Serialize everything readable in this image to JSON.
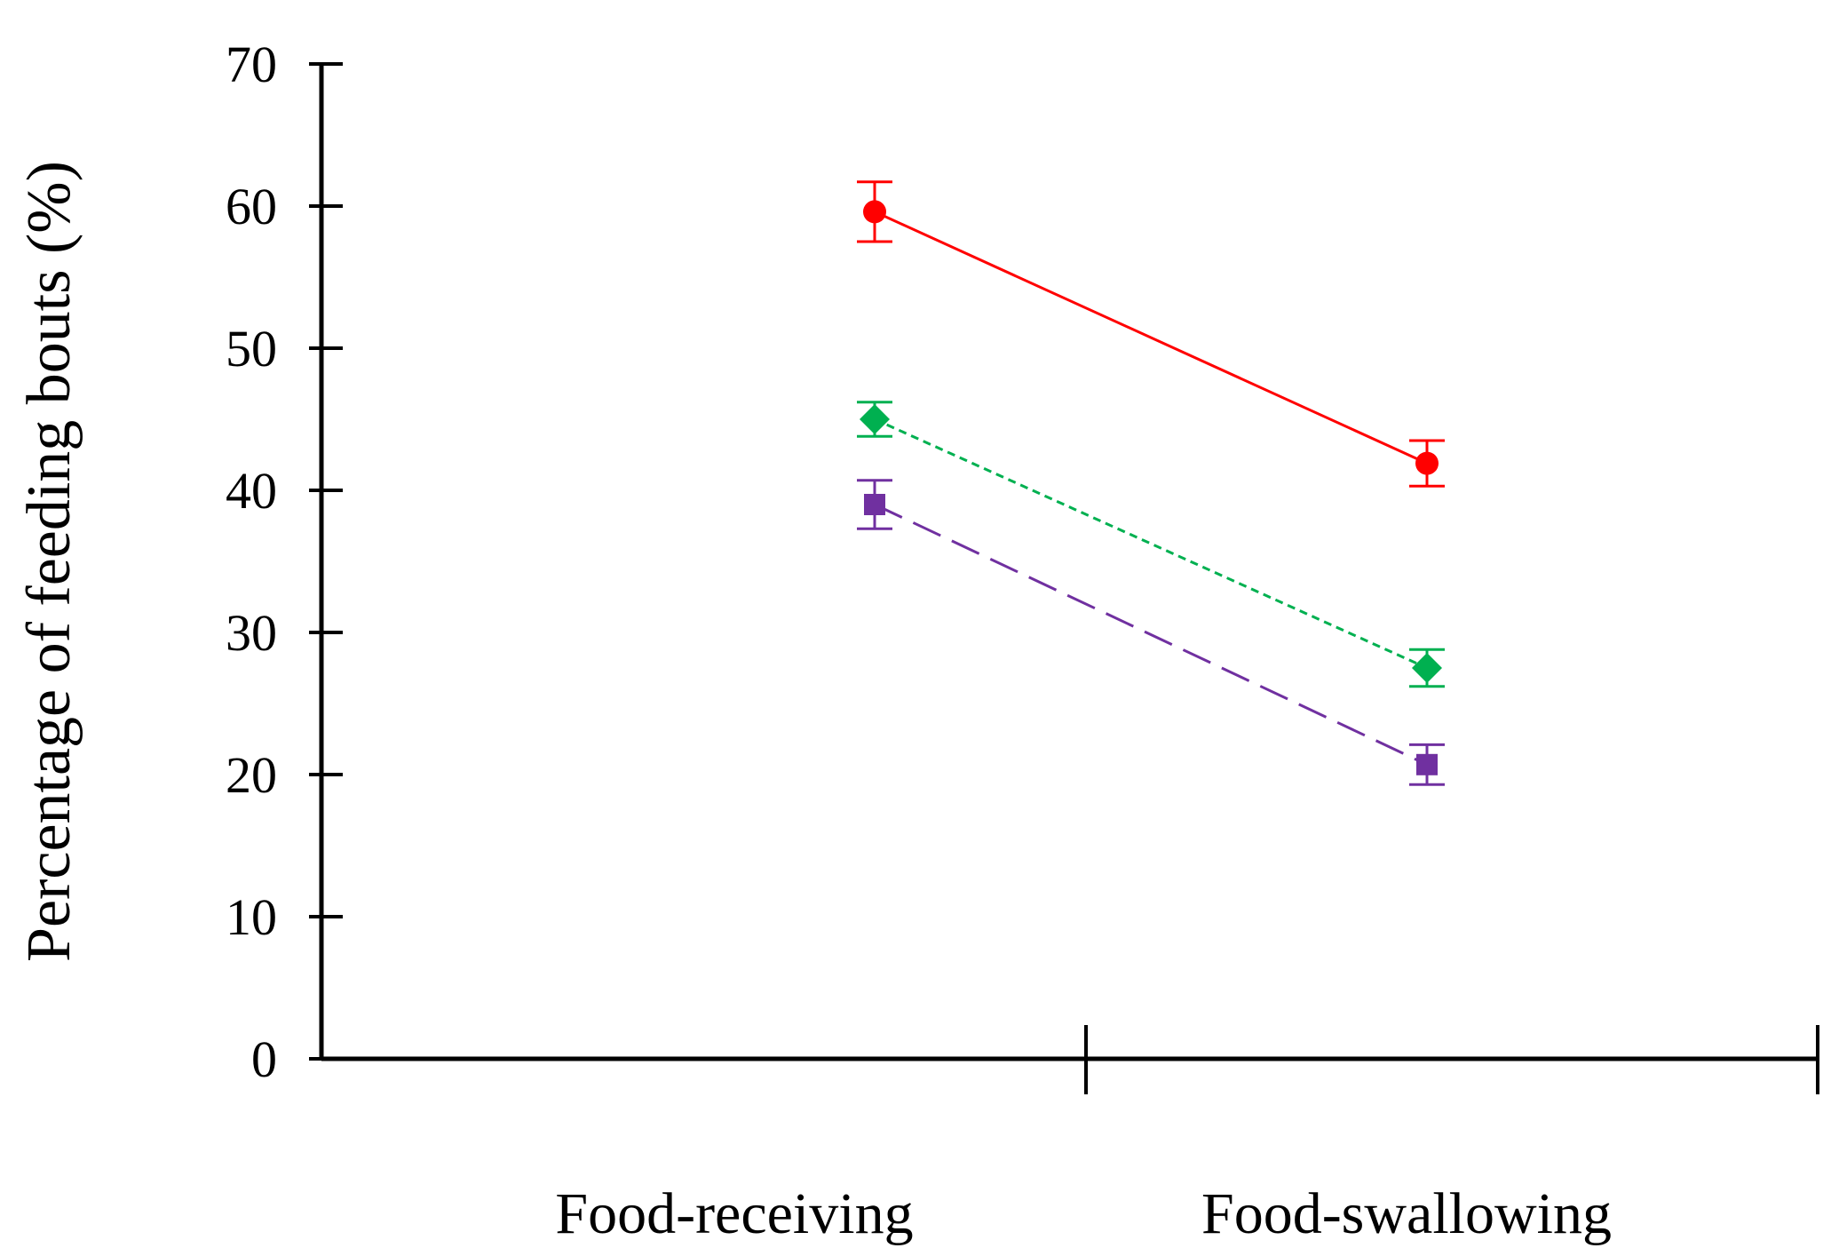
{
  "chart_data": {
    "type": "line",
    "title": "",
    "xlabel": "",
    "ylabel": "Percentage of feeding bouts (%)",
    "ylim": [
      0,
      70
    ],
    "yticks": [
      "0",
      "10",
      "20",
      "30",
      "40",
      "50",
      "60",
      "70"
    ],
    "categories": [
      "Food-receiving",
      "Food-swallowing"
    ],
    "grid": false,
    "legend": "none",
    "series": [
      {
        "name": "series-red-circle",
        "color": "#ff0000",
        "marker": "circle",
        "line_style": "solid",
        "values": [
          59.6,
          41.9
        ],
        "errors": [
          2.1,
          1.6
        ]
      },
      {
        "name": "series-green-diamond",
        "color": "#00b050",
        "marker": "diamond",
        "line_style": "dotted",
        "values": [
          45.0,
          27.5
        ],
        "errors": [
          1.2,
          1.3
        ]
      },
      {
        "name": "series-purple-square",
        "color": "#7030a0",
        "marker": "square",
        "line_style": "dashed",
        "values": [
          39.0,
          20.7
        ],
        "errors": [
          1.7,
          1.4
        ]
      }
    ]
  }
}
